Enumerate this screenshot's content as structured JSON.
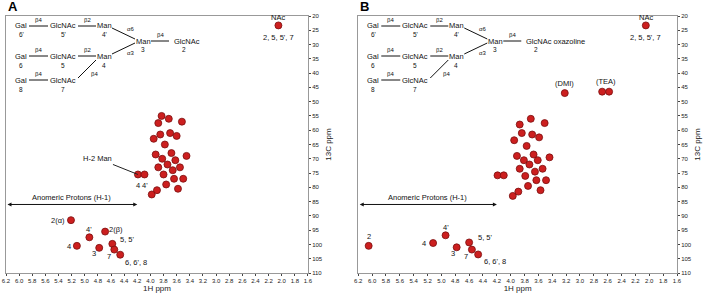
{
  "chart_data": [
    {
      "type": "scatter",
      "title": "A",
      "x_label": "1H ppm",
      "y_label": "13C ppm",
      "xlim": [
        6.2,
        1.6
      ],
      "ylim": [
        110,
        20
      ],
      "xticks": [
        6.2,
        {
          "value": 6,
          "label": "6.0"
        },
        5.8,
        5.6,
        5.4,
        5.2,
        {
          "value": 5,
          "label": "5.0"
        },
        4.8,
        4.6,
        4.4,
        4.2,
        {
          "value": 4,
          "label": "4.0"
        },
        3.8,
        3.6,
        3.4,
        3.2,
        {
          "value": 3,
          "label": "3.0"
        },
        2.8,
        2.6,
        2.4,
        2.2,
        {
          "value": 2,
          "label": "2.0"
        },
        1.8,
        1.6
      ],
      "yticks": [
        20,
        25,
        30,
        35,
        40,
        45,
        50,
        55,
        60,
        65,
        70,
        75,
        80,
        85,
        90,
        95,
        100,
        105,
        110
      ],
      "grid": false,
      "color": "#cc1f1f",
      "marker": "circle",
      "x": [
        5.21,
        4.69,
        5.12,
        4.93,
        4.78,
        4.58,
        4.55,
        4.46,
        4.19,
        4.09,
        3.95,
        3.92,
        3.88,
        3.85,
        3.82,
        3.8,
        3.78,
        3.76,
        3.74,
        3.72,
        3.7,
        3.68,
        3.66,
        3.64,
        3.62,
        3.6,
        3.58,
        3.55,
        3.52,
        3.5,
        3.88,
        3.98,
        3.9,
        3.83,
        3.45,
        2.05
      ],
      "values": [
        91.5,
        95.5,
        100.5,
        97.5,
        101.2,
        99.8,
        101.8,
        103.6,
        75.5,
        75.5,
        63,
        68.5,
        73,
        61.5,
        70,
        75.5,
        65,
        79,
        72,
        56,
        61,
        68,
        74,
        77,
        70.5,
        62,
        80.5,
        73,
        57,
        77,
        57.5,
        82.5,
        81,
        55,
        69,
        23.3
      ],
      "labels": [
        {
          "text": "2(α)",
          "x": 5.41,
          "y": 91.5
        },
        {
          "text": "2(β)",
          "x": 4.52,
          "y": 94.8
        },
        {
          "text": "4",
          "x": 5.24,
          "y": 100.8
        },
        {
          "text": "4'",
          "x": 4.93,
          "y": 94.6
        },
        {
          "text": "3",
          "x": 4.86,
          "y": 103.3
        },
        {
          "text": "5, 5'",
          "x": 4.35,
          "y": 98.4
        },
        {
          "text": "7",
          "x": 4.63,
          "y": 104.3
        },
        {
          "text": "6, 6', 8",
          "x": 4.22,
          "y": 106.2
        },
        {
          "text": "4",
          "x": 4.19,
          "y": 79.3
        },
        {
          "text": "4'",
          "x": 4.09,
          "y": 79.3
        },
        {
          "text": "NAc",
          "x": 2.05,
          "y": 20.6
        },
        {
          "text": "2, 5, 5', 7",
          "x": 2.05,
          "y": 27.6
        }
      ],
      "callouts": [
        {
          "text": "H-2 Man",
          "x": 4.19,
          "y": 75.5
        }
      ],
      "range_arrows": [
        {
          "text": "Anomeric Protons (H-1)",
          "x": [
            6.2,
            4.2
          ],
          "y": 86
        }
      ],
      "structure": {
        "antennae": [
          {
            "residues": [
              "Gal",
              "GlcNAc",
              "Man"
            ],
            "links": [
              "β4",
              "β2"
            ],
            "numbers": [
              "6'",
              "5'",
              "4'"
            ]
          },
          {
            "residues": [
              "Gal",
              "GlcNAc",
              "Man"
            ],
            "links": [
              "β4",
              "β2"
            ],
            "numbers": [
              "6",
              "5",
              "4"
            ]
          },
          {
            "residues": [
              "Gal",
              "GlcNAc"
            ],
            "links": [
              "β4",
              "β4"
            ],
            "numbers": [
              "8",
              "7"
            ]
          }
        ],
        "branch_links": [
          "α6",
          "α3"
        ],
        "core": {
          "residues": [
            "Man",
            "GlcNAc"
          ],
          "links": [
            "β4"
          ],
          "numbers": [
            "3",
            "2"
          ]
        }
      }
    },
    {
      "type": "scatter",
      "title": "B",
      "x_label": "1H ppm",
      "y_label": "13C ppm",
      "xlim": [
        6.2,
        1.6
      ],
      "ylim": [
        110,
        20
      ],
      "xticks": [
        6.2,
        {
          "value": 6,
          "label": "6.0"
        },
        5.8,
        5.6,
        5.4,
        5.2,
        {
          "value": 5,
          "label": "5.0"
        },
        4.8,
        4.6,
        4.4,
        4.2,
        {
          "value": 4,
          "label": "4.0"
        },
        3.8,
        3.6,
        3.4,
        3.2,
        {
          "value": 3,
          "label": "3.0"
        },
        2.8,
        2.6,
        2.4,
        2.2,
        {
          "value": 2,
          "label": "2.0"
        },
        1.8,
        1.6
      ],
      "yticks": [
        20,
        25,
        30,
        35,
        40,
        45,
        50,
        55,
        60,
        65,
        70,
        75,
        80,
        85,
        90,
        95,
        100,
        105,
        110
      ],
      "grid": false,
      "color": "#cc1f1f",
      "marker": "circle",
      "x": [
        6.05,
        5.12,
        4.94,
        4.78,
        4.6,
        4.56,
        4.47,
        4.19,
        4.1,
        3.95,
        3.91,
        3.87,
        3.84,
        3.81,
        3.79,
        3.77,
        3.75,
        3.73,
        3.71,
        3.69,
        3.67,
        3.65,
        3.63,
        3.61,
        3.59,
        3.57,
        3.54,
        3.51,
        3.49,
        3.87,
        3.97,
        3.89,
        3.44,
        3.22,
        2.68,
        2.58,
        2.05
      ],
      "values": [
        100.5,
        99.5,
        96.8,
        101,
        99.3,
        101.8,
        103.5,
        75.8,
        75.8,
        63.5,
        69,
        73.5,
        61,
        70.5,
        76,
        65.5,
        79.5,
        72,
        56,
        61.5,
        68.5,
        74.5,
        77.5,
        70.5,
        62.5,
        81,
        73.5,
        57.5,
        77.5,
        58,
        83,
        81.5,
        69.5,
        47,
        46.5,
        46.5,
        23.3
      ],
      "labels": [
        {
          "text": "2",
          "x": 6.05,
          "y": 97.2
        },
        {
          "text": "4",
          "x": 5.25,
          "y": 99.5
        },
        {
          "text": "4'",
          "x": 4.94,
          "y": 94.0
        },
        {
          "text": "3",
          "x": 4.84,
          "y": 103.3
        },
        {
          "text": "5, 5'",
          "x": 4.37,
          "y": 97.6
        },
        {
          "text": "7",
          "x": 4.64,
          "y": 104.3
        },
        {
          "text": "6, 6', 8",
          "x": 4.23,
          "y": 106
        },
        {
          "text": "(DMI)",
          "x": 3.22,
          "y": 43.5
        },
        {
          "text": "(TEA)",
          "x": 2.63,
          "y": 43.0
        },
        {
          "text": "NAc",
          "x": 2.05,
          "y": 20.6
        },
        {
          "text": "2, 5, 5', 7",
          "x": 2.05,
          "y": 27.6
        }
      ],
      "range_arrows": [
        {
          "text": "Anomeric Protons (H-1)",
          "x": [
            6.2,
            4.2
          ],
          "y": 86
        }
      ],
      "structure": {
        "antennae": [
          {
            "residues": [
              "Gal",
              "GlcNAc",
              "Man"
            ],
            "links": [
              "β4",
              "β2"
            ],
            "numbers": [
              "6'",
              "5'",
              "4'"
            ]
          },
          {
            "residues": [
              "Gal",
              "GlcNAc",
              "Man"
            ],
            "links": [
              "β4",
              "β2"
            ],
            "numbers": [
              "6",
              "5",
              "4"
            ]
          },
          {
            "residues": [
              "Gal",
              "GlcNAc"
            ],
            "links": [
              "β4",
              "β4"
            ],
            "numbers": [
              "8",
              "7"
            ]
          }
        ],
        "branch_links": [
          "α6",
          "α3"
        ],
        "core": {
          "residues": [
            "Man",
            "GlcNAc oxazoline"
          ],
          "links": [
            "β4"
          ],
          "numbers": [
            "3",
            "2"
          ]
        }
      }
    }
  ]
}
